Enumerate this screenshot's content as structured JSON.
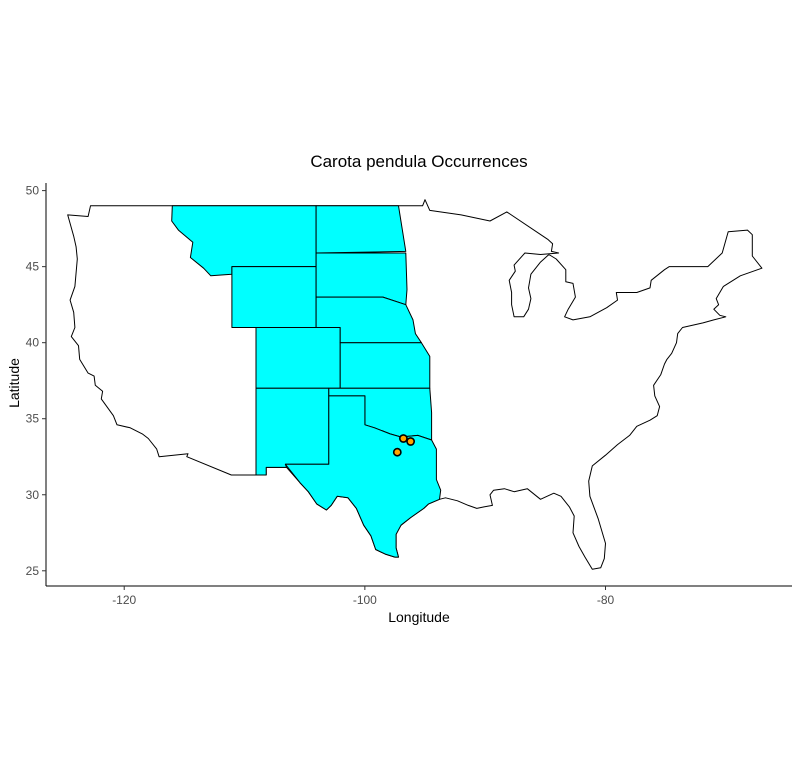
{
  "chart_data": {
    "type": "map",
    "title": "Carota pendula Occurrences",
    "xlabel": "Longitude",
    "ylabel": "Latitude",
    "xlim": [
      -126.5,
      -64.5
    ],
    "ylim": [
      24.0,
      50.5
    ],
    "x_ticks": [
      -120,
      -100,
      -80
    ],
    "y_ticks": [
      25,
      30,
      35,
      40,
      45,
      50
    ],
    "grid": false,
    "highlight_color": "#00ffff",
    "point_color": "#ffa500",
    "highlighted_states": [
      {
        "name": "Montana",
        "color": "#00ffff"
      },
      {
        "name": "Wyoming",
        "color": "#00ffff"
      },
      {
        "name": "Colorado",
        "color": "#00ffff"
      },
      {
        "name": "New Mexico",
        "color": "#00ffff"
      },
      {
        "name": "North Dakota",
        "color": "#00ffff"
      },
      {
        "name": "South Dakota",
        "color": "#00ffff"
      },
      {
        "name": "Nebraska",
        "color": "#00ffff"
      },
      {
        "name": "Kansas",
        "color": "#00ffff"
      },
      {
        "name": "Oklahoma",
        "color": "#00ffff"
      },
      {
        "name": "Texas",
        "color": "#00ffff"
      }
    ],
    "points": [
      {
        "x": -96.8,
        "y": 33.7
      },
      {
        "x": -96.2,
        "y": 33.5
      },
      {
        "x": -97.3,
        "y": 32.8
      }
    ]
  }
}
